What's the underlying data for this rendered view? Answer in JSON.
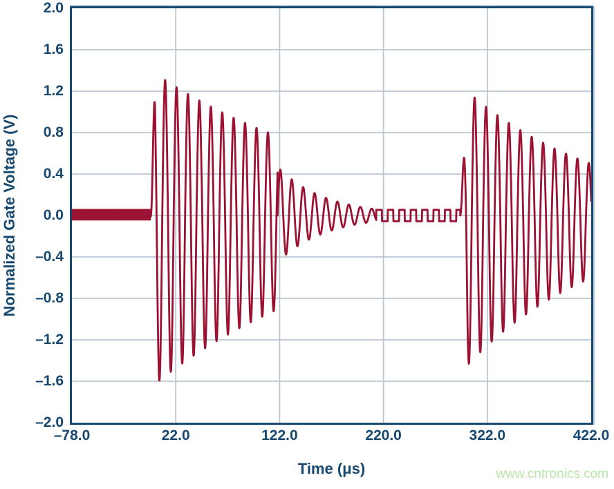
{
  "watermark": {
    "text": "www.cntronics.com"
  },
  "chart_data": {
    "type": "line",
    "title": "",
    "xlabel": "Time (μs)",
    "ylabel": "Normalized Gate Voltage (V)",
    "xlim": [
      -78.0,
      422.0
    ],
    "ylim": [
      -2.0,
      2.0
    ],
    "grid": true,
    "legend": "none",
    "x_ticks": [
      {
        "value": -78.0,
        "label": "–78.0"
      },
      {
        "value": 22.0,
        "label": "22.0"
      },
      {
        "value": 122.0,
        "label": "122.0"
      },
      {
        "value": 220.0,
        "label": "220.0"
      },
      {
        "value": 322.0,
        "label": "322.0"
      },
      {
        "value": 422.0,
        "label": "422.0"
      }
    ],
    "y_ticks": [
      {
        "value": 2.0,
        "label": "2.0"
      },
      {
        "value": 1.6,
        "label": "1.6"
      },
      {
        "value": 1.2,
        "label": "1.2"
      },
      {
        "value": 0.8,
        "label": "0.8"
      },
      {
        "value": 0.4,
        "label": "0.4"
      },
      {
        "value": 0.0,
        "label": "0.0"
      },
      {
        "value": -0.4,
        "label": "–0.4"
      },
      {
        "value": -0.8,
        "label": "–0.8"
      },
      {
        "value": -1.2,
        "label": "–1.2"
      },
      {
        "value": -1.6,
        "label": "–1.6"
      },
      {
        "value": -2.0,
        "label": "–2.0"
      }
    ],
    "colors": {
      "trace": "#9c1232",
      "axis_frame": "#17486f",
      "grid": "#b9c6d3",
      "labels": "#17486f",
      "watermark": "#b9e5a8"
    },
    "series": [
      {
        "name": "normalized-gate-voltage",
        "sample_step_us": 0.2,
        "segments": [
          {
            "kind": "noise-band",
            "t_start": -78.0,
            "t_end": -2.0,
            "amplitude": 0.055,
            "period_us": 1.4
          },
          {
            "kind": "ring-burst",
            "t_start": -2.0,
            "t_end": 120.0,
            "period_us": 11.0,
            "amp_pos": 1.4,
            "amp_neg": 1.66,
            "decay_tau_us": 202,
            "ramp_us": 4.0,
            "min_ripple": 0.0,
            "note": "first gate burst: peaks +1.0, +1.31 max, trough -1.52, decaying ring at ~91 kHz"
          },
          {
            "kind": "ring-burst",
            "t_start": 120.0,
            "t_end": 215.0,
            "period_us": 11.0,
            "amp_pos": 0.47,
            "amp_neg": 0.45,
            "decay_tau_us": 46,
            "ramp_us": 0.0,
            "min_ripple": 0.055,
            "note": "residual ringing after burst ends near t=120 μs, decays into quantized ripple"
          },
          {
            "kind": "square-ripple",
            "t_start": 215.0,
            "t_end": 296.0,
            "amplitude": 0.055,
            "period_us": 11.0
          },
          {
            "kind": "ring-burst",
            "t_start": 296.0,
            "t_end": 422.0,
            "period_us": 11.0,
            "amp_pos": 1.26,
            "amp_neg": 1.52,
            "decay_tau_us": 136,
            "ramp_us": 7.0,
            "min_ripple": 0.0,
            "note": "second gate burst: lead peak ~+0.5, peaks ~+1.17, trough ~-1.47, still ~±0.5 at right edge"
          }
        ]
      }
    ]
  }
}
